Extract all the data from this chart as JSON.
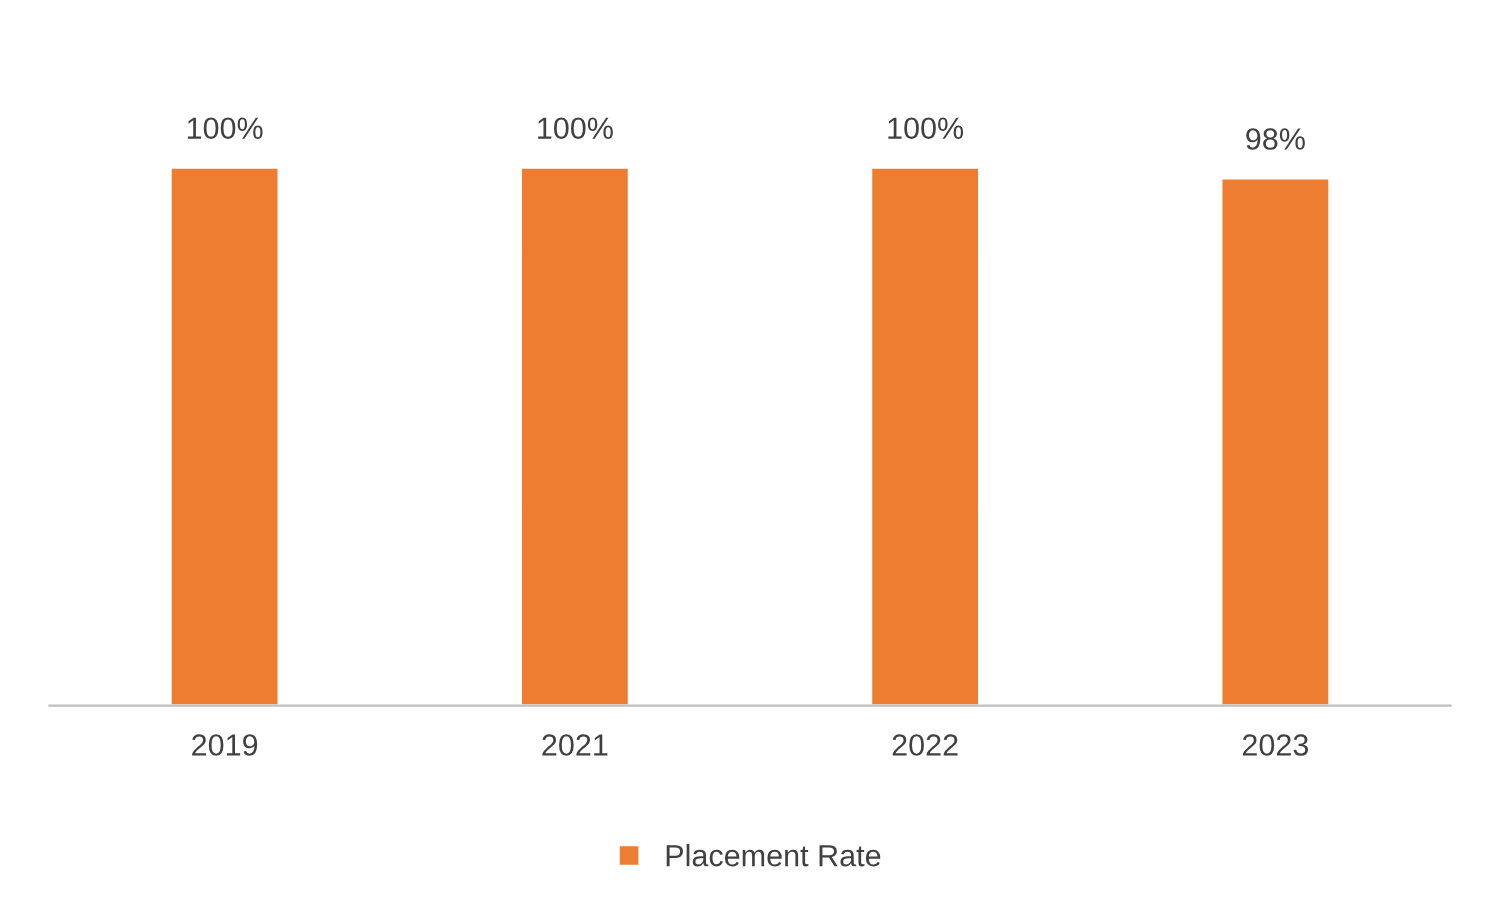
{
  "chart_data": {
    "type": "bar",
    "categories": [
      "2019",
      "2021",
      "2022",
      "2023"
    ],
    "series": [
      {
        "name": "Placement Rate",
        "color": "#ed7d31",
        "values": [
          100,
          100,
          100,
          98
        ],
        "value_labels": [
          "100%",
          "100%",
          "100%",
          "98%"
        ]
      }
    ],
    "tick_labels": "x",
    "grid": false,
    "legend": "bottom"
  }
}
